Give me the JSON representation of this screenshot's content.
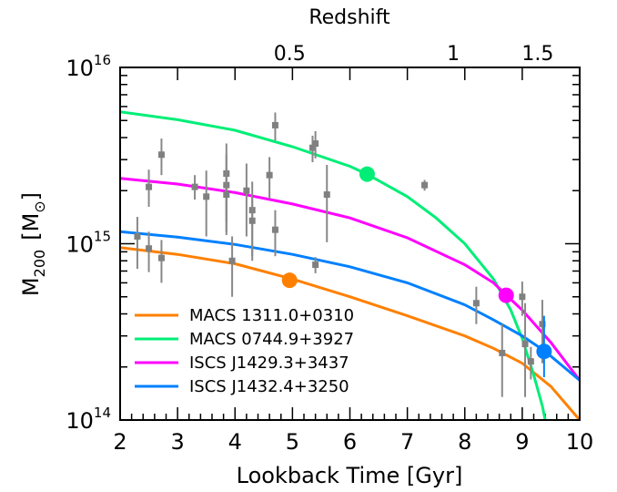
{
  "chart_data": {
    "type": "scatter",
    "xlabel": "Lookback Time [Gyr]",
    "top_xlabel": "Redshift",
    "ylabel_main": "M",
    "ylabel_sub": "200",
    "ylabel_unit_open": "[M",
    "ylabel_unit_close": "]",
    "xlim": [
      2,
      10
    ],
    "ylim": [
      100000000000000.0,
      1e+16
    ],
    "yscale": "log",
    "grid": false,
    "legend_position": "bottom-left",
    "x_ticks": [
      {
        "value": 2,
        "label": "2"
      },
      {
        "value": 3,
        "label": "3"
      },
      {
        "value": 4,
        "label": "4"
      },
      {
        "value": 5,
        "label": "5"
      },
      {
        "value": 6,
        "label": "6"
      },
      {
        "value": 7,
        "label": "7"
      },
      {
        "value": 8,
        "label": "8"
      },
      {
        "value": 9,
        "label": "9"
      },
      {
        "value": 10,
        "label": "10"
      }
    ],
    "top_ticks": [
      {
        "t": 4.95,
        "label": "0.5"
      },
      {
        "t": 7.8,
        "label": "1"
      },
      {
        "t": 9.27,
        "label": "1.5"
      }
    ],
    "y_ticks": [
      {
        "value": 100000000000000.0,
        "base": "10",
        "exp": "14"
      },
      {
        "value": 1000000000000000.0,
        "base": "10",
        "exp": "15"
      },
      {
        "value": 1e+16,
        "base": "10",
        "exp": "16"
      }
    ],
    "scatter_points": [
      {
        "x": 2.3,
        "y": 1100000000000000.0,
        "ylo": 720000000000000.0,
        "yhi": 1420000000000000.0
      },
      {
        "x": 2.5,
        "y": 2100000000000000.0,
        "ylo": 1620000000000000.0,
        "yhi": 2630000000000000.0
      },
      {
        "x": 2.5,
        "y": 940000000000000.0,
        "ylo": 690000000000000.0,
        "yhi": 1170000000000000.0
      },
      {
        "x": 2.72,
        "y": 3200000000000000.0,
        "ylo": 2450000000000000.0,
        "yhi": 3950000000000000.0
      },
      {
        "x": 2.72,
        "y": 830000000000000.0,
        "ylo": 600000000000000.0,
        "yhi": 1050000000000000.0
      },
      {
        "x": 3.3,
        "y": 2100000000000000.0,
        "ylo": 1780000000000000.0,
        "yhi": 2450000000000000.0
      },
      {
        "x": 3.5,
        "y": 1850000000000000.0,
        "ylo": 1100000000000000.0,
        "yhi": 2600000000000000.0
      },
      {
        "x": 3.85,
        "y": 2500000000000000.0,
        "ylo": 1320000000000000.0,
        "yhi": 3700000000000000.0
      },
      {
        "x": 3.85,
        "y": 2150000000000000.0,
        "ylo": 1170000000000000.0,
        "yhi": 3200000000000000.0
      },
      {
        "x": 3.85,
        "y": 1900000000000000.0,
        "ylo": 1120000000000000.0,
        "yhi": 2700000000000000.0
      },
      {
        "x": 3.95,
        "y": 800000000000000.0,
        "ylo": 500000000000000.0,
        "yhi": 1100000000000000.0
      },
      {
        "x": 4.2,
        "y": 2000000000000000.0,
        "ylo": 1100000000000000.0,
        "yhi": 2850000000000000.0
      },
      {
        "x": 4.3,
        "y": 1550000000000000.0,
        "ylo": 850000000000000.0,
        "yhi": 2250000000000000.0
      },
      {
        "x": 4.3,
        "y": 1350000000000000.0,
        "ylo": 800000000000000.0,
        "yhi": 1900000000000000.0
      },
      {
        "x": 4.6,
        "y": 2450000000000000.0,
        "ylo": 1800000000000000.0,
        "yhi": 3100000000000000.0
      },
      {
        "x": 4.7,
        "y": 4700000000000000.0,
        "ylo": 3850000000000000.0,
        "yhi": 5550000000000000.0
      },
      {
        "x": 4.7,
        "y": 1200000000000000.0,
        "ylo": 850000000000000.0,
        "yhi": 1550000000000000.0
      },
      {
        "x": 5.35,
        "y": 3500000000000000.0,
        "ylo": 2900000000000000.0,
        "yhi": 4100000000000000.0
      },
      {
        "x": 5.4,
        "y": 3700000000000000.0,
        "ylo": 3050000000000000.0,
        "yhi": 4350000000000000.0
      },
      {
        "x": 5.4,
        "y": 760000000000000.0,
        "ylo": 680000000000000.0,
        "yhi": 840000000000000.0
      },
      {
        "x": 5.6,
        "y": 1900000000000000.0,
        "ylo": 1020000000000000.0,
        "yhi": 2800000000000000.0
      },
      {
        "x": 7.3,
        "y": 2150000000000000.0,
        "ylo": 2000000000000000.0,
        "yhi": 2300000000000000.0
      },
      {
        "x": 8.2,
        "y": 460000000000000.0,
        "ylo": 350000000000000.0,
        "yhi": 570000000000000.0
      },
      {
        "x": 8.65,
        "y": 240000000000000.0,
        "ylo": 135000000000000.0,
        "yhi": 350000000000000.0
      },
      {
        "x": 9.0,
        "y": 500000000000000.0,
        "ylo": 390000000000000.0,
        "yhi": 610000000000000.0
      },
      {
        "x": 9.05,
        "y": 270000000000000.0,
        "ylo": 135000000000000.0,
        "yhi": 460000000000000.0
      },
      {
        "x": 9.15,
        "y": 215000000000000.0,
        "ylo": 170000000000000.0,
        "yhi": 260000000000000.0
      },
      {
        "x": 9.35,
        "y": 350000000000000.0,
        "ylo": 210000000000000.0,
        "yhi": 480000000000000.0
      }
    ],
    "series": [
      {
        "name": "MACS 1311.0+0310",
        "color": "#ff8000",
        "curve": [
          [
            2,
            950000000000000.0
          ],
          [
            3,
            870000000000000.0
          ],
          [
            4,
            770000000000000.0
          ],
          [
            5,
            630000000000000.0
          ],
          [
            6,
            500000000000000.0
          ],
          [
            7,
            390000000000000.0
          ],
          [
            8,
            300000000000000.0
          ],
          [
            8.5,
            255000000000000.0
          ],
          [
            9,
            210000000000000.0
          ],
          [
            9.5,
            155000000000000.0
          ],
          [
            10,
            100000000000000.0
          ]
        ],
        "marker": {
          "x": 4.95,
          "y": 620000000000000.0
        }
      },
      {
        "name": "MACS 0744.9+3927",
        "color": "#00ee77",
        "curve": [
          [
            2,
            5600000000000000.0
          ],
          [
            3,
            5050000000000000.0
          ],
          [
            4,
            4400000000000000.0
          ],
          [
            5,
            3550000000000000.0
          ],
          [
            6,
            2750000000000000.0
          ],
          [
            6.3,
            2480000000000000.0
          ],
          [
            7,
            1850000000000000.0
          ],
          [
            7.5,
            1400000000000000.0
          ],
          [
            8,
            1000000000000000.0
          ],
          [
            8.5,
            630000000000000.0
          ],
          [
            8.8,
            420000000000000.0
          ],
          [
            9.0,
            290000000000000.0
          ],
          [
            9.2,
            180000000000000.0
          ],
          [
            9.35,
            120000000000000.0
          ],
          [
            9.4,
            100000000000000.0
          ]
        ],
        "marker": {
          "x": 6.3,
          "y": 2480000000000000.0
        }
      },
      {
        "name": "ISCS J1429.3+3437",
        "color": "#ff00ff",
        "curve": [
          [
            2,
            2350000000000000.0
          ],
          [
            3,
            2180000000000000.0
          ],
          [
            4,
            1950000000000000.0
          ],
          [
            5,
            1680000000000000.0
          ],
          [
            6,
            1400000000000000.0
          ],
          [
            7,
            1080000000000000.0
          ],
          [
            8,
            760000000000000.0
          ],
          [
            8.5,
            600000000000000.0
          ],
          [
            8.7,
            520000000000000.0
          ],
          [
            9,
            420000000000000.0
          ],
          [
            9.5,
            275000000000000.0
          ],
          [
            10,
            168000000000000.0
          ]
        ],
        "marker": {
          "x": 8.72,
          "y": 510000000000000.0
        }
      },
      {
        "name": "ISCS J1432.4+3250",
        "color": "#0080ff",
        "curve": [
          [
            2,
            1170000000000000.0
          ],
          [
            3,
            1090000000000000.0
          ],
          [
            4,
            990000000000000.0
          ],
          [
            5,
            870000000000000.0
          ],
          [
            6,
            740000000000000.0
          ],
          [
            7,
            600000000000000.0
          ],
          [
            8,
            450000000000000.0
          ],
          [
            8.5,
            370000000000000.0
          ],
          [
            9,
            300000000000000.0
          ],
          [
            9.4,
            245000000000000.0
          ],
          [
            10,
            168000000000000.0
          ]
        ],
        "marker": {
          "x": 9.38,
          "y": 245000000000000.0,
          "ylo": 175000000000000.0,
          "yhi": 390000000000000.0
        }
      }
    ]
  }
}
